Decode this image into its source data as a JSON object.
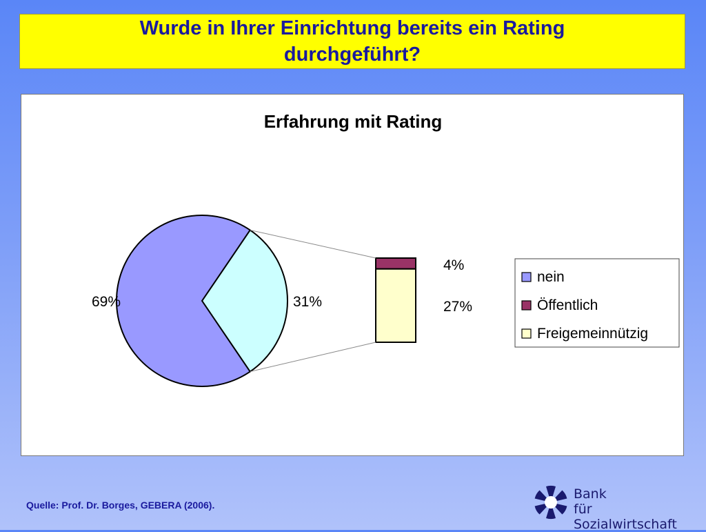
{
  "slide": {
    "title": "Wurde in Ihrer Einrichtung bereits ein Rating durchgeführt?",
    "source": "Quelle: Prof. Dr. Borges, GEBERA (2006)."
  },
  "logo": {
    "line1": "Bank",
    "line2": "für Sozialwirtschaft"
  },
  "chart_data": {
    "type": "pie",
    "title": "Erfahrung mit Rating",
    "series": [
      {
        "name": "nein",
        "value": 69,
        "label": "69%",
        "color": "#9999FF"
      },
      {
        "name": "Öffentlich",
        "value": 4,
        "label": "4%",
        "color": "#993366"
      },
      {
        "name": "Freigemeinnützig",
        "value": 27,
        "label": "27%",
        "color": "#FFFFCC"
      }
    ],
    "pie_slices": [
      {
        "name": "nein",
        "value": 69,
        "label": "69%",
        "color": "#9999FF"
      },
      {
        "name": "",
        "value": 31,
        "label": "31%",
        "color": "#CCFFFF"
      }
    ],
    "legend_position": "right",
    "subtype": "pie-of-bar"
  }
}
